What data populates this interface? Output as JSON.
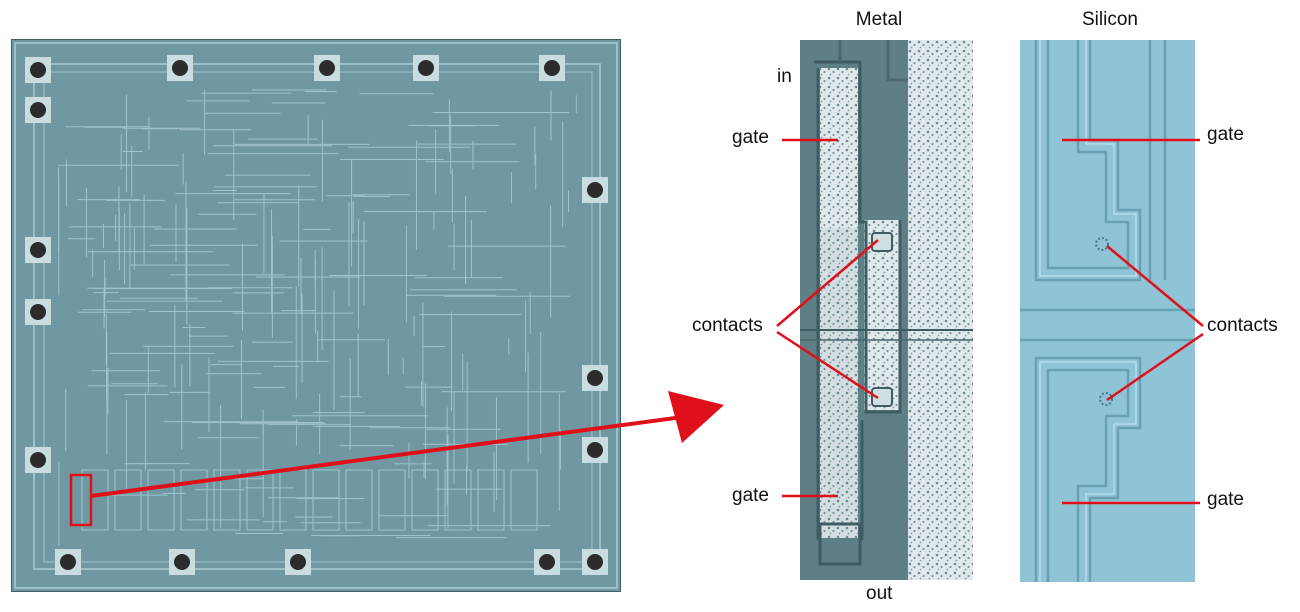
{
  "figure": {
    "titles": {
      "metal": "Metal",
      "silicon": "Silicon"
    },
    "labels": {
      "in": "in",
      "out": "out",
      "metal_gate_top": "gate",
      "metal_gate_bottom": "gate",
      "metal_contacts": "contacts",
      "silicon_gate_top": "gate",
      "silicon_gate_bottom": "gate",
      "silicon_contacts": "contacts"
    },
    "colors": {
      "annotation_red": "#e0101a",
      "die_base": "#6f98a3",
      "metal_base": "#5e7f86",
      "metal_bright": "#dde8ea",
      "silicon_base": "#8fc4d7",
      "silicon_edge": "#6aa0b4",
      "bond_pad": "#2c2c2c"
    },
    "icons": [
      "arrow-icon"
    ]
  }
}
